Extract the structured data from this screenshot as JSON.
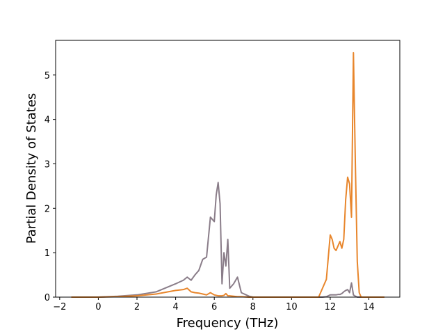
{
  "chart_data": {
    "type": "line",
    "x_label": "Frequency (THz)",
    "y_label": "Partial Density of States",
    "x": [
      -1.4,
      0,
      1,
      2,
      3,
      4,
      4.4,
      4.6,
      4.8,
      5.0,
      5.2,
      5.4,
      5.6,
      5.8,
      6.0,
      6.1,
      6.2,
      6.3,
      6.4,
      6.5,
      6.6,
      6.7,
      6.8,
      7.0,
      7.2,
      7.4,
      7.8,
      8.0,
      11.4,
      11.6,
      11.8,
      12.0,
      12.1,
      12.2,
      12.3,
      12.4,
      12.5,
      12.6,
      12.7,
      12.8,
      12.9,
      13.0,
      13.1,
      13.2,
      13.3,
      13.4,
      13.5,
      13.6,
      14.8
    ],
    "series": [
      {
        "color": "#8a7d89",
        "values": [
          0,
          0,
          0.02,
          0.05,
          0.12,
          0.3,
          0.38,
          0.45,
          0.38,
          0.5,
          0.6,
          0.85,
          0.9,
          1.8,
          1.7,
          2.3,
          2.58,
          2.1,
          0.3,
          1.0,
          0.7,
          1.3,
          0.2,
          0.3,
          0.45,
          0.1,
          0.02,
          0,
          0,
          0,
          0.01,
          0.05,
          0.05,
          0.05,
          0.05,
          0.06,
          0.06,
          0.08,
          0.12,
          0.15,
          0.17,
          0.1,
          0.32,
          0.05,
          0.02,
          0,
          0,
          0,
          0
        ]
      },
      {
        "color": "#e8862c",
        "values": [
          0,
          0,
          0.01,
          0.03,
          0.07,
          0.15,
          0.17,
          0.2,
          0.12,
          0.1,
          0.09,
          0.07,
          0.05,
          0.1,
          0.05,
          0.04,
          0.03,
          0.03,
          0.03,
          0.04,
          0.08,
          0.03,
          0.03,
          0.02,
          0.01,
          0.01,
          0,
          0,
          0,
          0.2,
          0.4,
          1.4,
          1.3,
          1.1,
          1.05,
          1.15,
          1.25,
          1.1,
          1.3,
          2.2,
          2.7,
          2.55,
          1.8,
          5.5,
          3.0,
          0.8,
          0.1,
          0,
          0
        ]
      }
    ],
    "xlim": [
      -2.21,
      15.6
    ],
    "ylim": [
      0,
      5.78
    ],
    "xticks": [
      {
        "value": -2,
        "label": "−2"
      },
      0,
      2,
      4,
      6,
      8,
      10,
      12,
      14
    ],
    "yticks": [
      0,
      1,
      2,
      3,
      4,
      5
    ]
  }
}
